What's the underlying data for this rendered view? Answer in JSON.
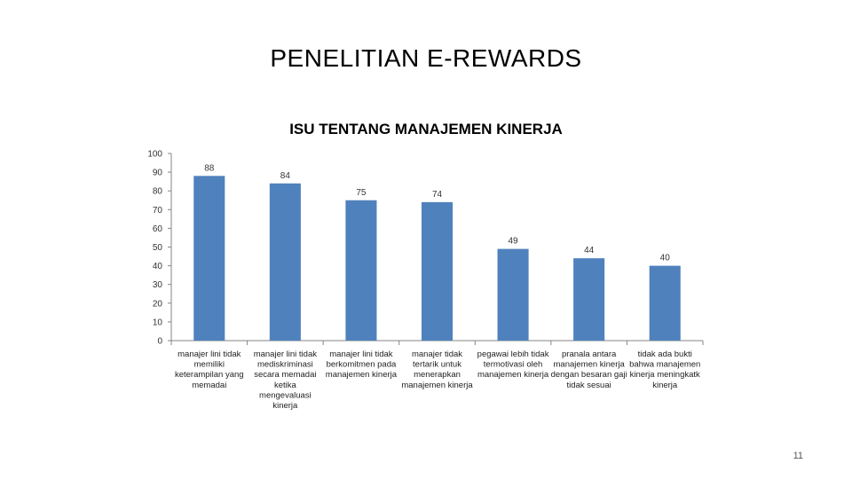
{
  "slide": {
    "title": "PENELITIAN E-REWARDS",
    "page_number": "11"
  },
  "chart_data": {
    "type": "bar",
    "title": "ISU TENTANG MANAJEMEN KINERJA",
    "xlabel": "",
    "ylabel": "",
    "ylim": [
      0,
      100
    ],
    "yticks": [
      0,
      10,
      20,
      30,
      40,
      50,
      60,
      70,
      80,
      90,
      100
    ],
    "grid": false,
    "legend": "none",
    "bar_color": "#4f81bd",
    "categories": [
      [
        "manajer lini tidak",
        "memiliki",
        "keterampilan yang",
        "memadai"
      ],
      [
        "manajer lini tidak",
        "mediskriminasi",
        "secara memadai",
        "ketika",
        "mengevaluasi",
        "kinerja"
      ],
      [
        "manajer lini tidak",
        "berkomitmen pada",
        "manajemen kinerja"
      ],
      [
        "manajer tidak",
        "tertarik untuk",
        "menerapkan",
        "manajemen kinerja"
      ],
      [
        "pegawai lebih tidak",
        "termotivasi oleh",
        "manajemen kinerja"
      ],
      [
        "pranala antara",
        "manajemen kinerja",
        "dengan besaran gaji",
        "tidak sesuai"
      ],
      [
        "tidak ada bukti",
        "bahwa manajemen",
        "kinerja meningkatk",
        "kinerja"
      ]
    ],
    "values": [
      88,
      84,
      75,
      74,
      49,
      44,
      40
    ]
  }
}
